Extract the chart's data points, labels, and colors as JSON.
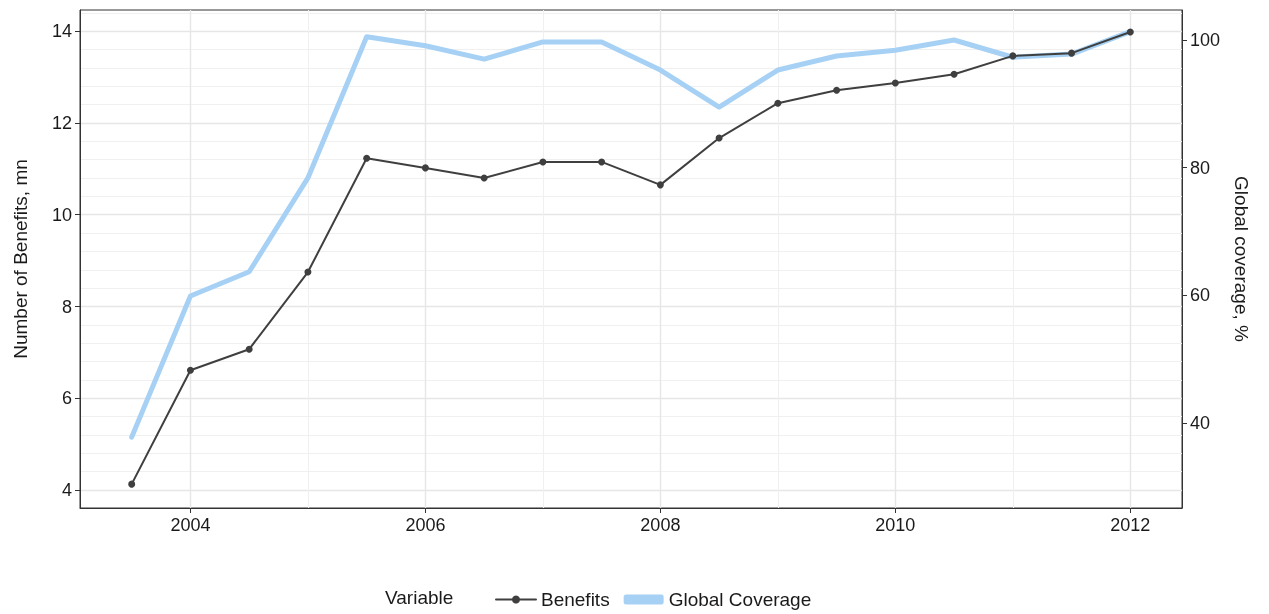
{
  "chart_data": {
    "type": "line",
    "x": [
      2003.5,
      2004,
      2004.5,
      2005,
      2005.5,
      2006,
      2006.5,
      2007,
      2007.5,
      2008,
      2008.5,
      2009,
      2009.5,
      2010,
      2010.5,
      2011,
      2011.5,
      2012
    ],
    "series": [
      {
        "name": "Benefits",
        "color": "#3f3f3f",
        "marker": "circle",
        "values": [
          4.13,
          6.61,
          7.07,
          8.75,
          11.23,
          11.02,
          10.8,
          11.15,
          11.15,
          10.65,
          11.67,
          12.43,
          12.71,
          12.87,
          13.06,
          13.46,
          13.52,
          13.98
        ]
      },
      {
        "name": "Global Coverage",
        "color": "#a6d1f5",
        "marker": "none",
        "axis": "y2",
        "values": [
          37.8,
          59.9,
          63.7,
          78.4,
          100.5,
          99.1,
          97.0,
          99.7,
          99.7,
          95.3,
          89.5,
          95.3,
          97.5,
          98.4,
          100.0,
          97.3,
          97.8,
          101.3
        ]
      }
    ],
    "ylabel": "Number of Benefits, mn",
    "y2label": "Global coverage, %",
    "legend_title": "Variable",
    "xlim": [
      2003.06,
      2012.44
    ],
    "xticks": [
      2004,
      2006,
      2008,
      2010,
      2012
    ],
    "ylim": [
      3.61,
      14.46
    ],
    "yticks": [
      4,
      6,
      8,
      10,
      12,
      14
    ],
    "y2lim": [
      26.7,
      104.7
    ],
    "y2ticks": [
      40,
      60,
      80,
      100
    ],
    "grid": true,
    "legend": "bottom",
    "line_style": "solid"
  }
}
